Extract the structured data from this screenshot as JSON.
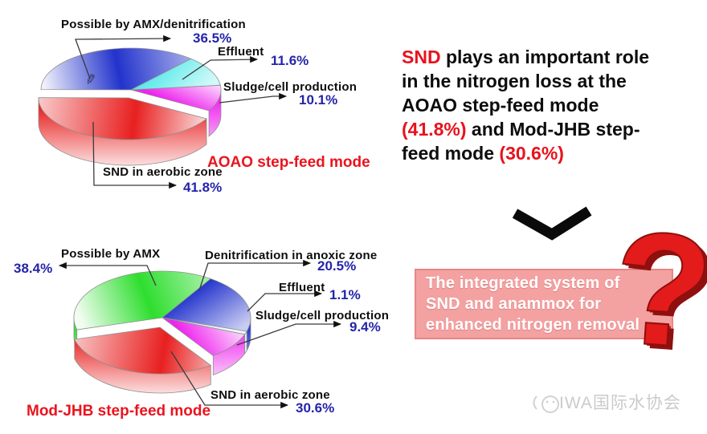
{
  "chart_data": [
    {
      "type": "pie",
      "title": "AOAO step-feed mode",
      "mode_label": "AOAO step-feed mode",
      "slices": [
        {
          "label": "Sludge/cell production",
          "value": 10.1,
          "pct_label": "10.1%",
          "color": "#ee22ee"
        },
        {
          "label": "SND in aerobic zone",
          "value": 41.8,
          "pct_label": "41.8%",
          "color": "#e82020"
        },
        {
          "label": "Possible by AMX/denitrification",
          "value": 36.5,
          "pct_label": "36.5%",
          "color": "#2233cc"
        },
        {
          "label": "Effluent",
          "value": 11.6,
          "pct_label": "11.6%",
          "color": "#45e6e6"
        }
      ],
      "layout": {
        "style": "3d-exploded",
        "start_angle_deg": -6.4,
        "exploded_slice": 1,
        "legend": "none"
      }
    },
    {
      "type": "pie",
      "title": "Mod-JHB step-feed mode",
      "mode_label": "Mod-JHB step-feed mode",
      "slices": [
        {
          "label": "Sludge/cell production",
          "value": 9.4,
          "pct_label": "9.4%",
          "color": "#ee22ee"
        },
        {
          "label": "SND in aerobic zone",
          "value": 30.6,
          "pct_label": "30.6%",
          "color": "#e82020"
        },
        {
          "label": "Possible by AMX",
          "value": 38.4,
          "pct_label": "38.4%",
          "color": "#2ede2e"
        },
        {
          "label": "Denitrification in anoxic zone",
          "value": 20.5,
          "pct_label": "20.5%",
          "color": "#2233cc"
        },
        {
          "label": "Effluent",
          "value": 1.1,
          "pct_label": "1.1%",
          "color": "#dff7f7"
        }
      ],
      "layout": {
        "style": "3d-exploded",
        "start_angle_deg": 21,
        "exploded_slice": 1,
        "legend": "none"
      }
    }
  ],
  "statement": {
    "lines": [
      {
        "segments": [
          {
            "text": "SND"
          },
          {
            "text": " plays an important role"
          }
        ]
      },
      {
        "segments": [
          {
            "text": "in the nitrogen loss at the"
          }
        ]
      },
      {
        "segments": [
          {
            "text": "AOAO step-feed mode"
          }
        ]
      },
      {
        "segments": [
          {
            "text": "(41.8%)"
          },
          {
            "text": " and Mod-JHB step-"
          }
        ]
      },
      {
        "segments": [
          {
            "text": "feed mode "
          },
          {
            "text": "(30.6%)"
          }
        ]
      }
    ]
  },
  "note_box": {
    "lines": [
      "The integrated system of",
      "SND and anammox for",
      "enhanced nitrogen removal"
    ]
  },
  "question_mark": {
    "glyph": "?"
  },
  "icons": {
    "pencil": "✎"
  },
  "watermark": {
    "text": "IWA国际水协会"
  },
  "colors": {
    "accent_red": "#e8121c",
    "pct_blue": "#2424aa",
    "label_black": "#0d0d0d",
    "note_box_bg": "#f4a1a1",
    "note_box_border": "#e98585",
    "note_box_text": "#ffffff",
    "question_mark_red": "#e31b1b",
    "chevron_black": "#0a0a0a",
    "watermark_gray": "#cbcbcb"
  }
}
